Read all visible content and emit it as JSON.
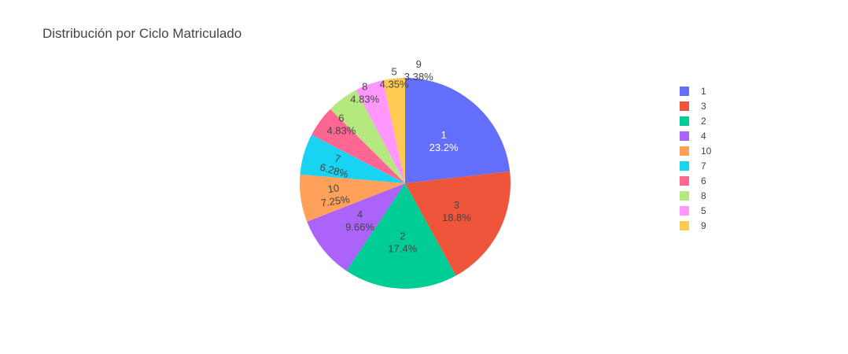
{
  "chart_data": {
    "type": "pie",
    "title": "Distribución por Ciclo Matriculado",
    "slices": [
      {
        "label": "1",
        "value": 23.2,
        "pct_text": "23.2%",
        "color": "#636efa",
        "text_color": "#ffffff",
        "text_position": "inside"
      },
      {
        "label": "3",
        "value": 18.8,
        "pct_text": "18.8%",
        "color": "#EF553B",
        "text_color": "#444444",
        "text_position": "inside"
      },
      {
        "label": "2",
        "value": 17.4,
        "pct_text": "17.4%",
        "color": "#00cc96",
        "text_color": "#444444",
        "text_position": "inside"
      },
      {
        "label": "4",
        "value": 9.66,
        "pct_text": "9.66%",
        "color": "#ab63fa",
        "text_color": "#444444",
        "text_position": "inside"
      },
      {
        "label": "10",
        "value": 7.25,
        "pct_text": "7.25%",
        "color": "#FFA15A",
        "text_color": "#444444",
        "text_position": "inside-rotated"
      },
      {
        "label": "7",
        "value": 6.28,
        "pct_text": "6.28%",
        "color": "#19d3f3",
        "text_color": "#444444",
        "text_position": "inside-rotated"
      },
      {
        "label": "6",
        "value": 4.83,
        "pct_text": "4.83%",
        "color": "#FF6692",
        "text_color": "#444444",
        "text_position": "outside"
      },
      {
        "label": "8",
        "value": 4.83,
        "pct_text": "4.83%",
        "color": "#B6E880",
        "text_color": "#444444",
        "text_position": "outside"
      },
      {
        "label": "5",
        "value": 4.35,
        "pct_text": "4.35%",
        "color": "#FF97FF",
        "text_color": "#444444",
        "text_position": "outside"
      },
      {
        "label": "9",
        "value": 3.38,
        "pct_text": "3.38%",
        "color": "#FECB52",
        "text_color": "#444444",
        "text_position": "outside"
      }
    ],
    "direction": "clockwise",
    "start_angle": "top",
    "legend_position": "right"
  }
}
